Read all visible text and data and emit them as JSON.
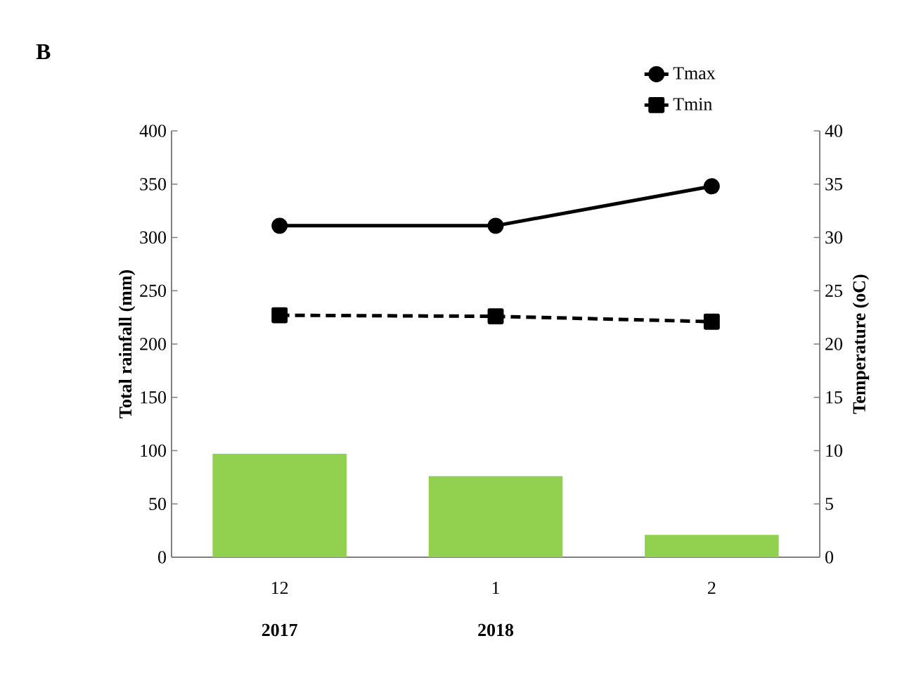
{
  "chart_data": {
    "type": "bar",
    "title": "B",
    "categories": [
      "12",
      "1",
      "2"
    ],
    "ylabel": "Total rainfall (mm)",
    "y2label": "Temperature (oC)",
    "ylim": [
      0,
      400
    ],
    "yticks": [
      0,
      50,
      100,
      150,
      200,
      250,
      300,
      350,
      400
    ],
    "y2lim": [
      0,
      40
    ],
    "y2ticks": [
      0,
      5,
      10,
      15,
      20,
      25,
      30,
      35,
      40
    ],
    "series": [
      {
        "color": "#92d050",
        "values": [
          97,
          76,
          21
        ]
      },
      {
        "type": "line",
        "name": "Tmax",
        "axis": "y2",
        "color": "#000000",
        "marker": "circle",
        "line_style": "solid",
        "values": [
          31.1,
          31.1,
          34.8
        ]
      },
      {
        "type": "line",
        "name": "Tmin",
        "axis": "y2",
        "color": "#000000",
        "marker": "square",
        "line_style": "dashed",
        "values": [
          22.7,
          22.6,
          22.1
        ]
      }
    ],
    "annotations": [
      "2017",
      "2018"
    ],
    "legend": "top right",
    "grid": false
  }
}
